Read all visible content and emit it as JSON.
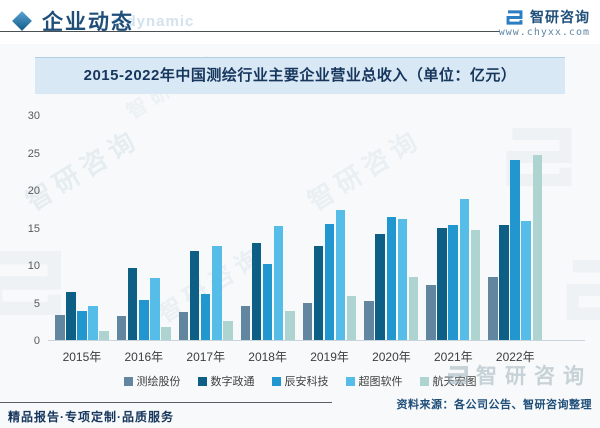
{
  "header": {
    "section_title": "企业动态",
    "section_watermark": "e dynamic",
    "brand_name": "智研咨询",
    "brand_url": "www.chyxx.com"
  },
  "chart_title": "2015-2022年中国测绘行业主要企业营业总收入（单位：亿元）",
  "chart_data": {
    "type": "bar",
    "title": "2015-2022年中国测绘行业主要企业营业总收入（单位：亿元）",
    "unit": "亿元",
    "categories": [
      "2015年",
      "2016年",
      "2017年",
      "2018年",
      "2019年",
      "2020年",
      "2021年",
      "2022年"
    ],
    "series": [
      {
        "name": "测绘股份",
        "color": "#6286a0",
        "values": [
          3.4,
          3.2,
          3.7,
          4.5,
          4.9,
          5.2,
          7.4,
          8.4
        ]
      },
      {
        "name": "数字政通",
        "color": "#0e5f86",
        "values": [
          6.4,
          9.6,
          11.9,
          13.0,
          12.5,
          14.1,
          14.9,
          15.3
        ]
      },
      {
        "name": "辰安科技",
        "color": "#2196cf",
        "values": [
          3.9,
          5.4,
          6.2,
          10.2,
          15.5,
          16.4,
          15.3,
          24.0
        ]
      },
      {
        "name": "超图软件",
        "color": "#56bce8",
        "values": [
          4.5,
          8.3,
          12.5,
          15.2,
          17.3,
          16.2,
          18.8,
          15.9
        ]
      },
      {
        "name": "航天宏图",
        "color": "#aed4d1",
        "values": [
          1.2,
          1.8,
          2.5,
          3.9,
          5.9,
          8.4,
          14.7,
          24.7
        ]
      }
    ],
    "ylim": [
      0,
      30
    ],
    "yticks": [
      0,
      5,
      10,
      15,
      20,
      25,
      30
    ],
    "grid": false,
    "legend_position": "bottom"
  },
  "footer": {
    "left_text": "精品报告·专项定制·品质服务",
    "source_text": "资料来源：各公司公告、智研咨询整理"
  },
  "watermark": {
    "text": "智研咨询"
  }
}
